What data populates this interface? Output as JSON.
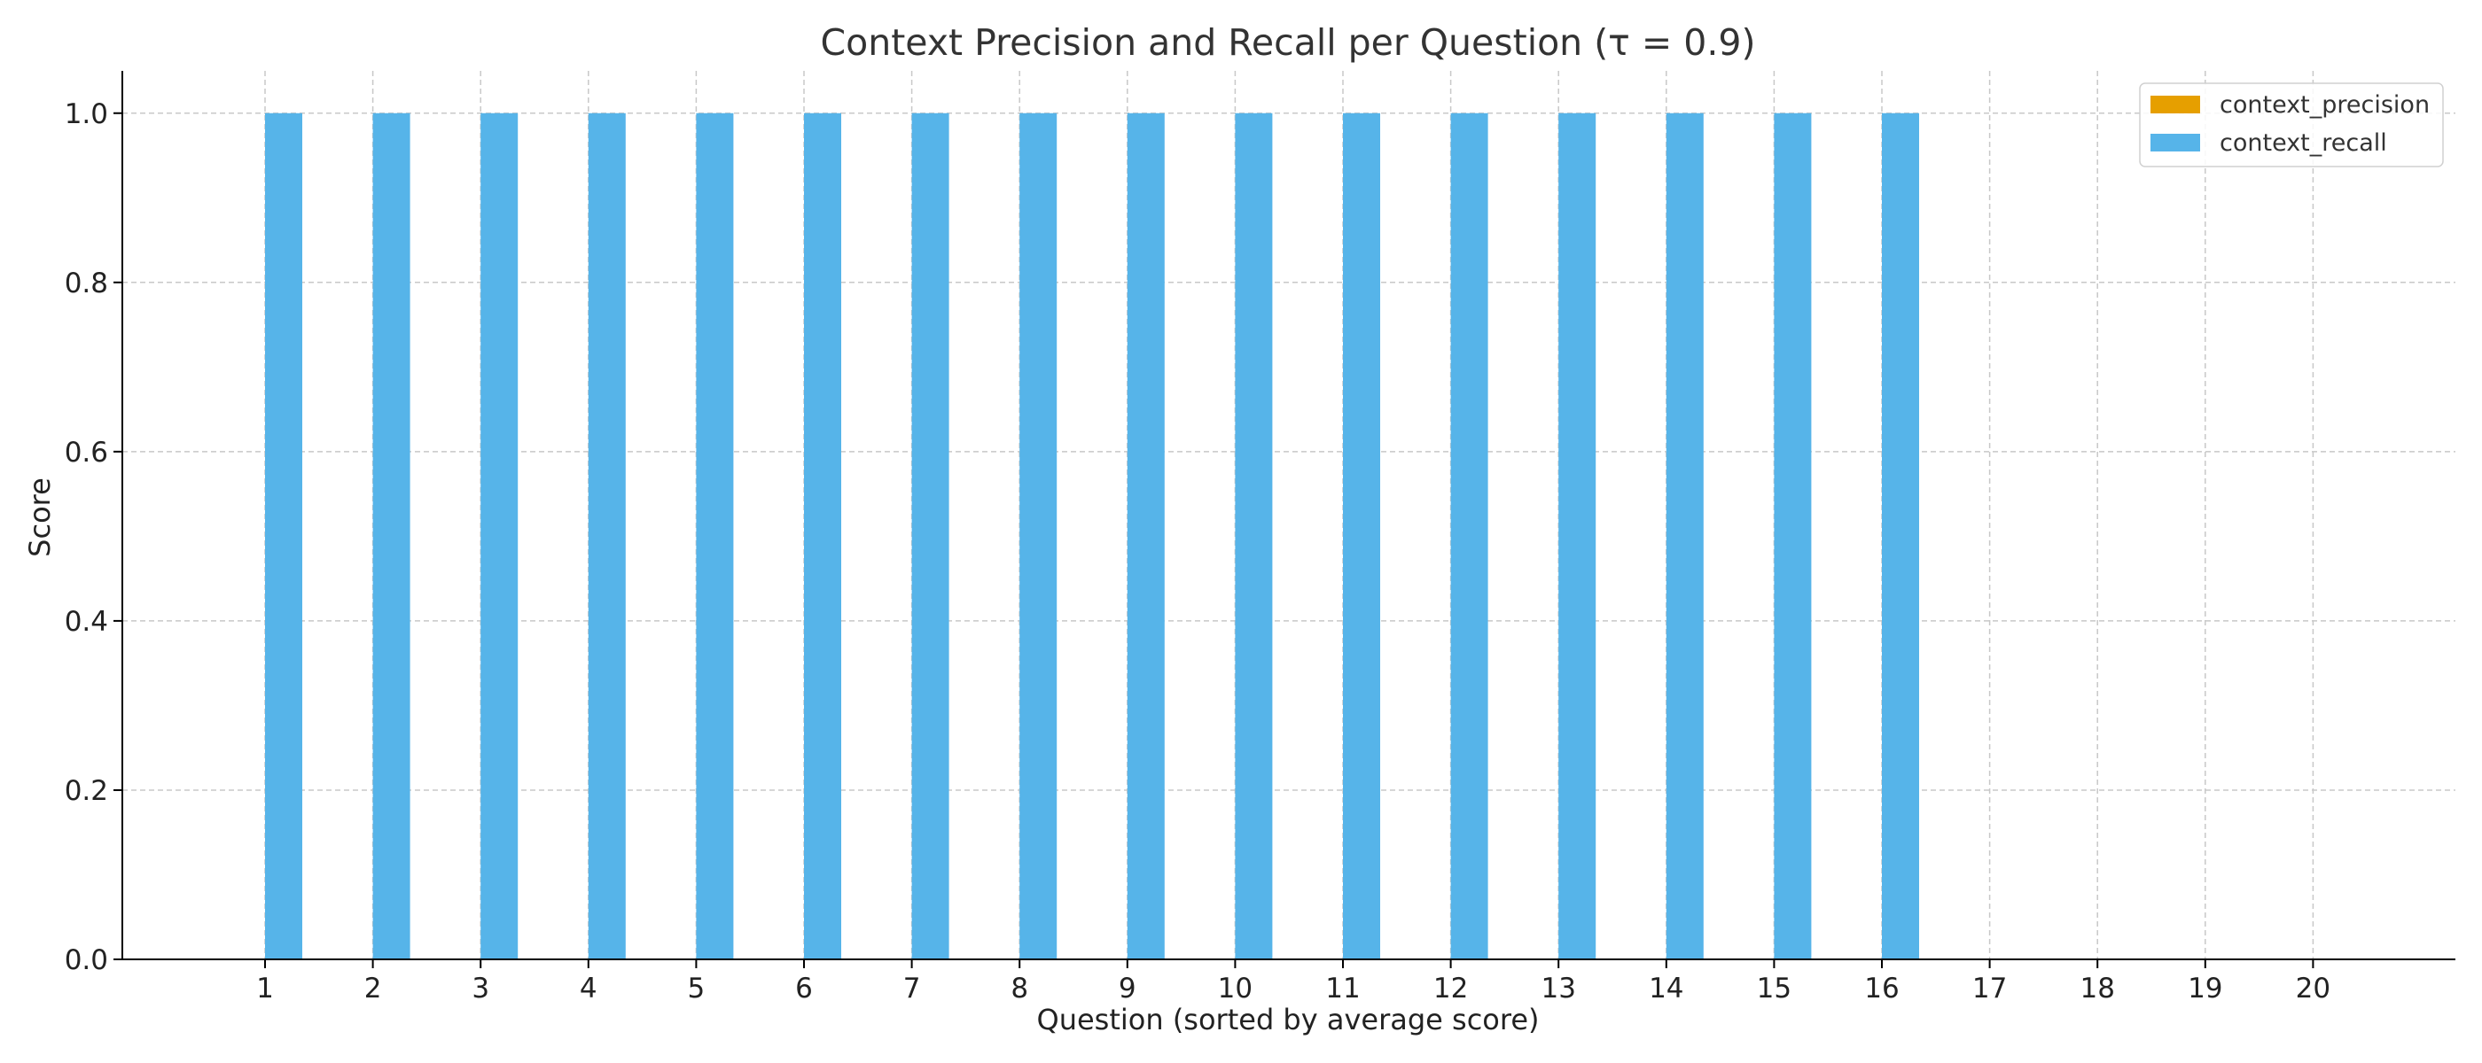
{
  "chart_data": {
    "type": "bar",
    "title": "Context Precision and Recall per Question (τ = 0.9)",
    "xlabel": "Question (sorted by average score)",
    "ylabel": "Score",
    "categories": [
      "1",
      "2",
      "3",
      "4",
      "5",
      "6",
      "7",
      "8",
      "9",
      "10",
      "11",
      "12",
      "13",
      "14",
      "15",
      "16",
      "17",
      "18",
      "19",
      "20"
    ],
    "ylim": [
      0,
      1.05
    ],
    "yticks": [
      "0.0",
      "0.2",
      "0.4",
      "0.6",
      "0.8",
      "1.0"
    ],
    "grid": true,
    "legend_position": "top-right",
    "series": [
      {
        "name": "context_precision",
        "color": "#E69F00",
        "values": [
          0,
          0,
          0,
          0,
          0,
          0,
          0,
          0,
          0,
          0,
          0,
          0,
          0,
          0,
          0,
          0,
          0,
          0,
          0,
          0
        ]
      },
      {
        "name": "context_recall",
        "color": "#56B4E9",
        "values": [
          1,
          1,
          1,
          1,
          1,
          1,
          1,
          1,
          1,
          1,
          1,
          1,
          1,
          1,
          1,
          1,
          0,
          0,
          0,
          0
        ]
      }
    ]
  }
}
